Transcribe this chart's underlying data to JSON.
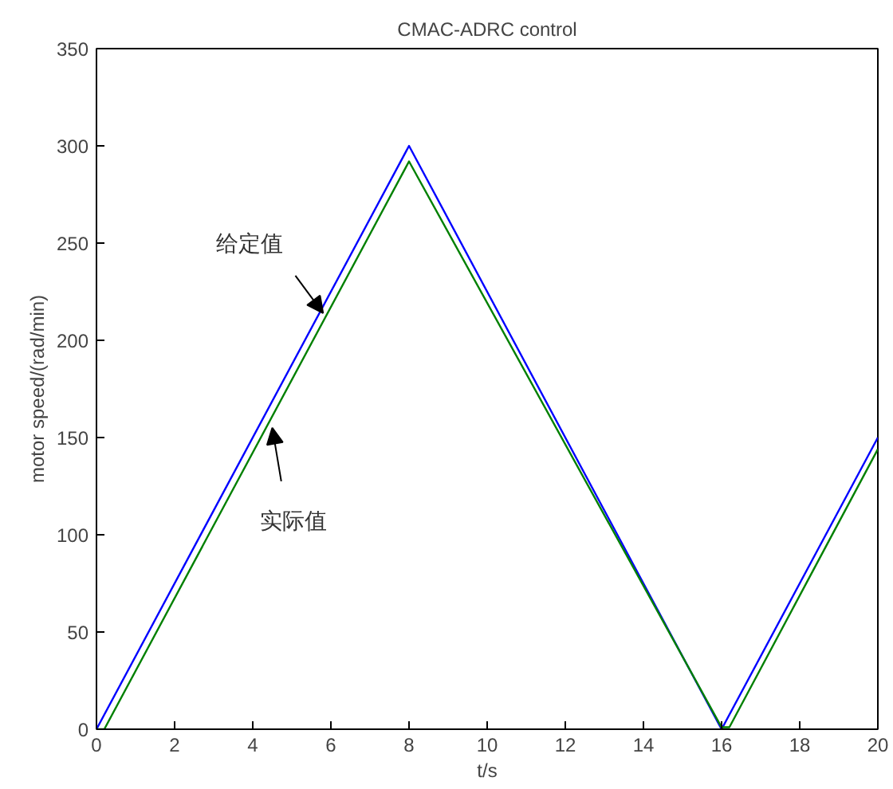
{
  "chart_data": {
    "type": "line",
    "title": "CMAC-ADRC control",
    "xlabel": "t/s",
    "ylabel": "motor speed/(rad/min)",
    "series": [
      {
        "color": "#0000ff",
        "x": [
          0,
          8,
          16,
          20
        ],
        "values": [
          0,
          300,
          0,
          150
        ]
      },
      {
        "color": "#008000",
        "x": [
          0,
          0.2,
          8,
          16,
          16.2,
          20
        ],
        "values": [
          0,
          0,
          292,
          1,
          1,
          144
        ]
      }
    ],
    "annotations": [
      {
        "text": "给定值",
        "x": 5.8,
        "y": 214
      },
      {
        "text": "实际值",
        "x": 4.5,
        "y": 155
      }
    ],
    "xlim": [
      0,
      20
    ],
    "ylim": [
      0,
      350
    ],
    "xticks": [
      0,
      2,
      4,
      6,
      8,
      10,
      12,
      14,
      16,
      18,
      20
    ],
    "yticks": [
      0,
      50,
      100,
      150,
      200,
      250,
      300,
      350
    ],
    "grid": false,
    "marker": "none",
    "line_style": "solid"
  }
}
